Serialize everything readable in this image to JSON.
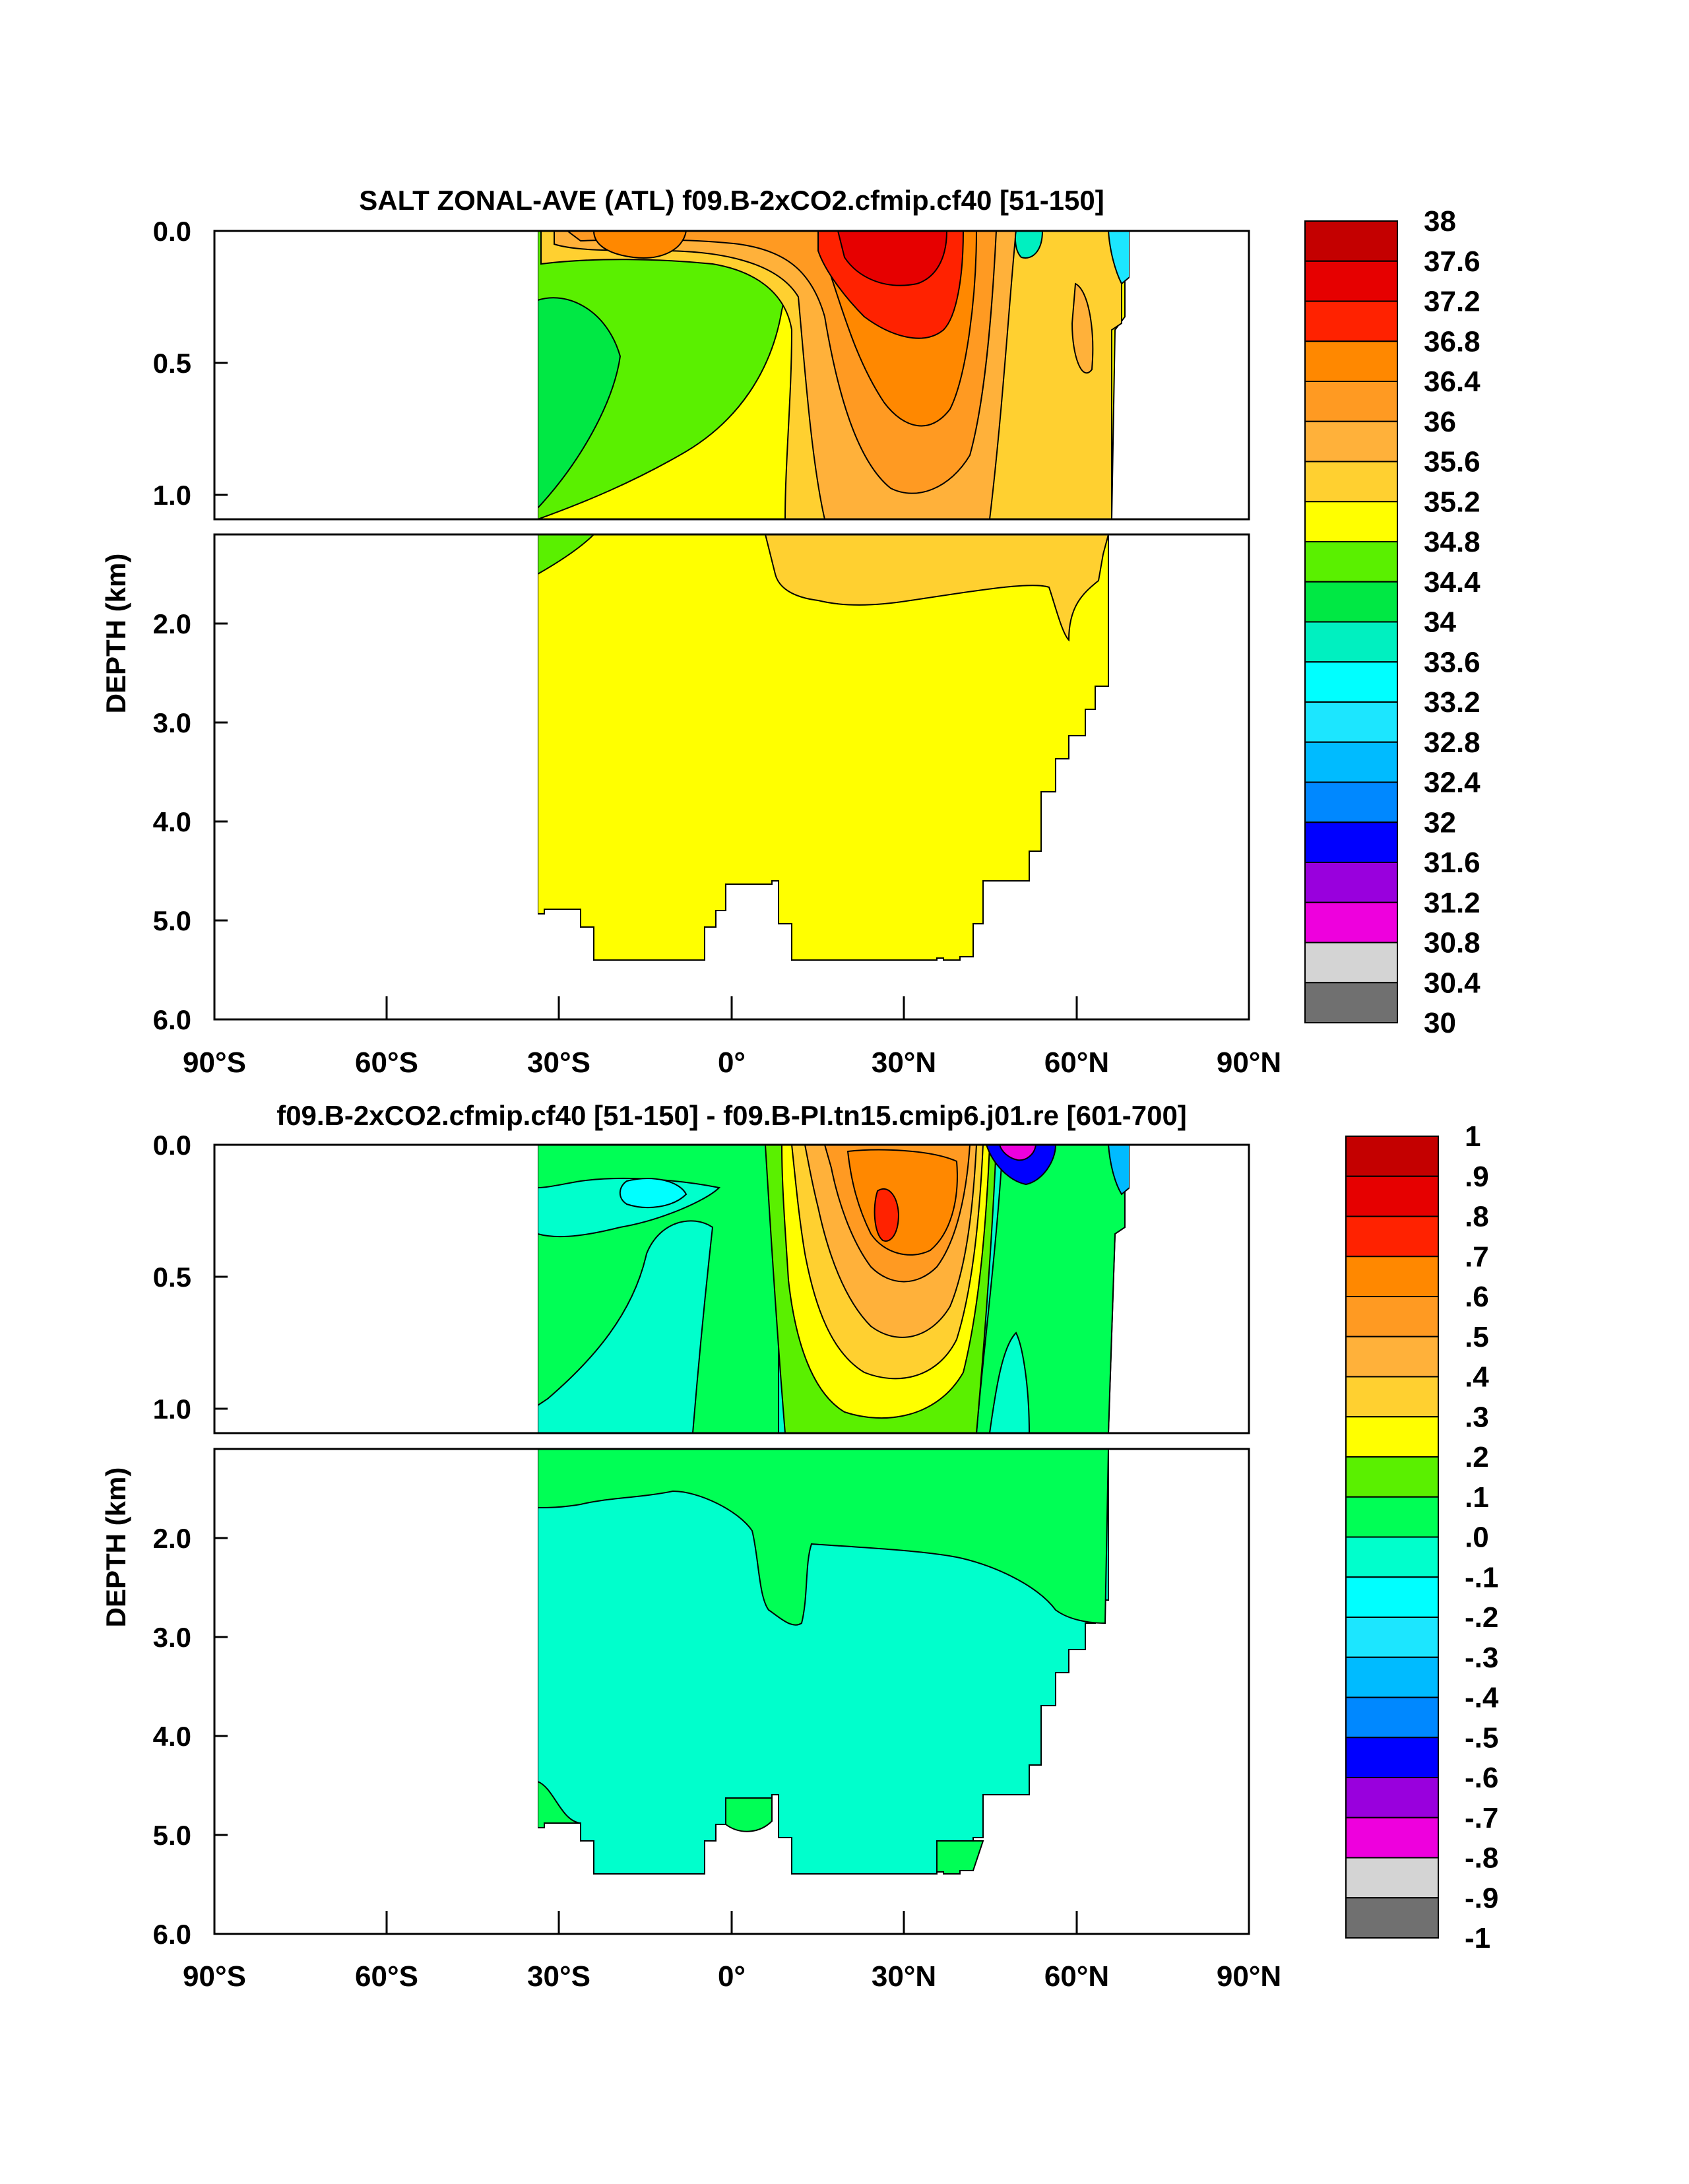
{
  "chart_data": [
    {
      "type": "heatmap",
      "title": "SALT ZONAL-AVE (ATL) f09.B-2xCO2.cfmip.cf40 [51-150]",
      "ylabel": "DEPTH (km)",
      "xlim": [
        -90,
        90
      ],
      "x_ticks": [
        "90°S",
        "60°S",
        "30°S",
        "0°",
        "30°N",
        "60°N",
        "90°N"
      ],
      "y_ticks_upper": [
        "0.0",
        "0.5",
        "1.0"
      ],
      "y_ticks_lower": [
        "2.0",
        "3.0",
        "4.0",
        "5.0",
        "6.0"
      ],
      "colorbar": {
        "labels": [
          "38",
          "37.6",
          "37.2",
          "36.8",
          "36.4",
          "36",
          "35.6",
          "35.2",
          "34.8",
          "34.4",
          "34",
          "33.6",
          "33.2",
          "32.8",
          "32.4",
          "32",
          "31.6",
          "31.2",
          "30.8",
          "30.4",
          "30"
        ],
        "colors": [
          "#c40000",
          "#e60000",
          "#ff2200",
          "#ff8800",
          "#ff9a22",
          "#ffb13a",
          "#ffd030",
          "#ffff00",
          "#5af000",
          "#00e844",
          "#00f0c0",
          "#00ffff",
          "#1ce6ff",
          "#00bbff",
          "#0088ff",
          "#0000ff",
          "#9900dd",
          "#ee00dd",
          "#d4d4d4",
          "#707070"
        ]
      }
    },
    {
      "type": "heatmap",
      "title": "f09.B-2xCO2.cfmip.cf40 [51-150] - f09.B-PI.tn15.cmip6.j01.re [601-700]",
      "ylabel": "DEPTH (km)",
      "xlim": [
        -90,
        90
      ],
      "x_ticks": [
        "90°S",
        "60°S",
        "30°S",
        "0°",
        "30°N",
        "60°N",
        "90°N"
      ],
      "y_ticks_upper": [
        "0.0",
        "0.5",
        "1.0"
      ],
      "y_ticks_lower": [
        "2.0",
        "3.0",
        "4.0",
        "5.0",
        "6.0"
      ],
      "colorbar": {
        "labels": [
          "1",
          ".9",
          ".8",
          ".7",
          ".6",
          ".5",
          ".4",
          ".3",
          ".2",
          ".1",
          ".0",
          "-.1",
          "-.2",
          "-.3",
          "-.4",
          "-.5",
          "-.6",
          "-.7",
          "-.8",
          "-.9",
          "-1"
        ],
        "colors": [
          "#c40000",
          "#e60000",
          "#ff2200",
          "#ff8800",
          "#ff9a22",
          "#ffb13a",
          "#ffd030",
          "#ffff00",
          "#5af000",
          "#00ff55",
          "#00ffcc",
          "#00ffff",
          "#1ce6ff",
          "#00bbff",
          "#0088ff",
          "#0000ff",
          "#9900dd",
          "#ee00dd",
          "#d4d4d4",
          "#707070"
        ]
      }
    }
  ]
}
